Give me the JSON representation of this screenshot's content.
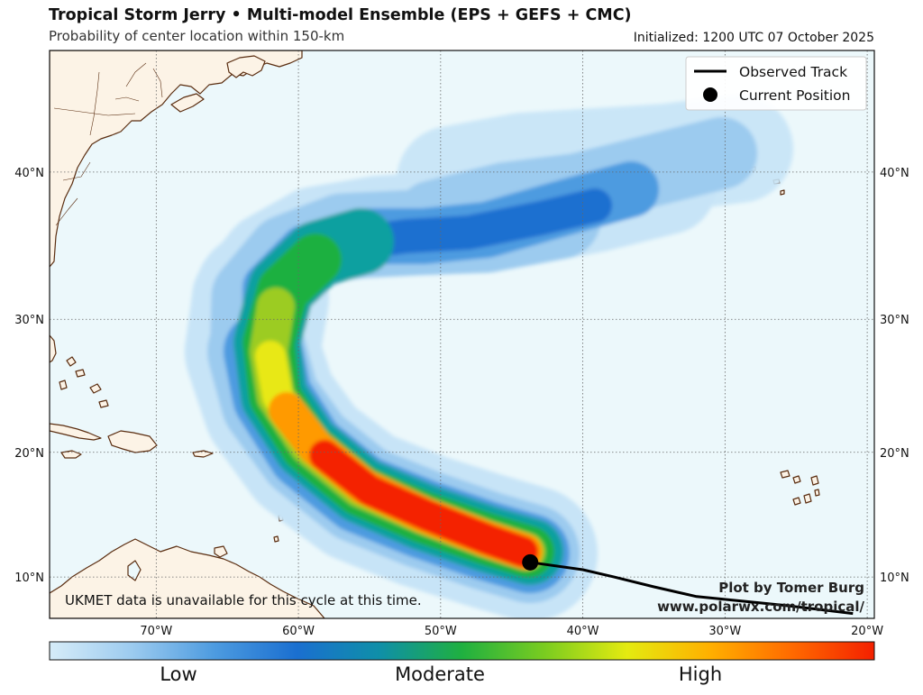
{
  "header": {
    "title": "Tropical Storm Jerry • Multi-model Ensemble (EPS + GEFS + CMC)",
    "subtitle": "Probability of center location within 150-km",
    "initialized": "Initialized: 1200 UTC 07 October 2025"
  },
  "axes": {
    "lon_labels": [
      "70°W",
      "60°W",
      "50°W",
      "40°W",
      "30°W",
      "20°W"
    ],
    "lat_labels": [
      "10°N",
      "20°N",
      "30°N",
      "40°N"
    ],
    "lon_range_deg_w": [
      77.5,
      19.5
    ],
    "lat_range_deg_n": [
      6.6,
      47.3
    ],
    "grid": "dotted"
  },
  "legend": {
    "placement": "top-right",
    "observed_track_label": "Observed Track",
    "current_position_label": "Current Position"
  },
  "storm": {
    "observed_track": [
      {
        "lon_w": 21.0,
        "lat_n": 7.0
      },
      {
        "lon_w": 26.0,
        "lat_n": 7.7
      },
      {
        "lon_w": 32.0,
        "lat_n": 8.4
      },
      {
        "lon_w": 35.0,
        "lat_n": 9.2
      },
      {
        "lon_w": 37.8,
        "lat_n": 10.0
      },
      {
        "lon_w": 40.0,
        "lat_n": 10.6
      },
      {
        "lon_w": 43.7,
        "lat_n": 11.2
      }
    ],
    "current_position": {
      "lon_w": 43.7,
      "lat_n": 11.2
    }
  },
  "notes": {
    "ukmet": "UKMET data is unavailable for this cycle at this time.",
    "credit_line1": "Plot by Tomer Burg",
    "credit_line2": "www.polarwx.com/tropical/"
  },
  "colorbar": {
    "labels": [
      "Low",
      "Moderate",
      "High"
    ],
    "colors": [
      "#d6ecf8",
      "#9ccbef",
      "#4d9be0",
      "#1a6fd0",
      "#0f8fa8",
      "#1fb040",
      "#7acc20",
      "#e4ea10",
      "#ffb000",
      "#ff6a00",
      "#f42000"
    ]
  },
  "colors": {
    "ocean": "#ecf8fb",
    "land": "#fcf3e6",
    "coastline": "#5a2d10",
    "track": "#000000"
  }
}
